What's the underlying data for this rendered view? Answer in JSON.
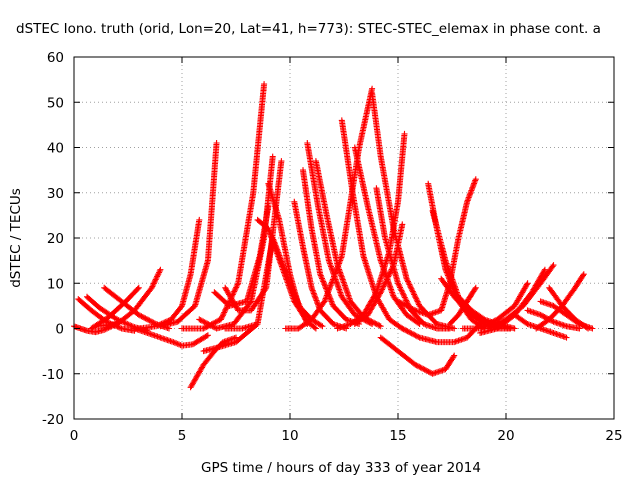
{
  "chart_data": {
    "type": "scatter",
    "title": "dSTEC Iono. truth (orid, Lon=20, Lat=41, h=773): STEC-STEC_elemax in phase cont. a",
    "xlabel": "GPS time / hours of day 333 of year 2014",
    "ylabel": "dSTEC  / TECUs",
    "xlim": [
      0,
      25
    ],
    "ylim": [
      -20,
      60
    ],
    "x_ticks": [
      "0",
      "5",
      "10",
      "15",
      "20",
      "25"
    ],
    "y_ticks": [
      "-20",
      "-10",
      "0",
      "10",
      "20",
      "30",
      "40",
      "50",
      "60"
    ],
    "grid": true,
    "marker": "+",
    "color": "#ff0000",
    "series": [
      {
        "x": [
          0.0,
          0.3,
          0.6,
          1.0,
          1.4,
          1.8,
          2.0
        ],
        "y": [
          0.5,
          0,
          -0.5,
          -0.8,
          -0.3,
          0.6,
          1.2
        ]
      },
      {
        "x": [
          0.2,
          0.8,
          1.5,
          2.2,
          2.8
        ],
        "y": [
          6.5,
          4,
          1.5,
          0,
          -0.5
        ]
      },
      {
        "x": [
          0.6,
          1.2,
          2.0,
          2.8,
          3.4
        ],
        "y": [
          7,
          4.5,
          2,
          0.3,
          -0.5
        ]
      },
      {
        "x": [
          0.8,
          1.6,
          2.4,
          3.0
        ],
        "y": [
          0,
          2.5,
          6,
          9
        ]
      },
      {
        "x": [
          1.4,
          2.2,
          3.0,
          3.8,
          4.4
        ],
        "y": [
          9,
          6,
          3,
          1,
          0
        ]
      },
      {
        "x": [
          1.0,
          2.0,
          2.8,
          3.6,
          4.0
        ],
        "y": [
          0.5,
          1,
          4,
          9,
          13
        ]
      },
      {
        "x": [
          2.8,
          3.4,
          4.0,
          4.6,
          5.0,
          5.5,
          6.2
        ],
        "y": [
          0,
          -1,
          -2,
          -3,
          -3.8,
          -3.5,
          -1.5
        ]
      },
      {
        "x": [
          3.0,
          3.8,
          4.5,
          5.0,
          5.4,
          5.8
        ],
        "y": [
          0,
          0.5,
          2,
          5,
          12,
          24
        ]
      },
      {
        "x": [
          4.0,
          4.8,
          5.6,
          6.2,
          6.6
        ],
        "y": [
          0.5,
          1.5,
          5,
          15,
          41
        ]
      },
      {
        "x": [
          5.4,
          6.0,
          6.5,
          6.9,
          7.5
        ],
        "y": [
          -13,
          -8,
          -5,
          -3,
          -2
        ]
      },
      {
        "x": [
          6.0,
          6.8,
          7.5,
          8.0,
          8.5
        ],
        "y": [
          -5,
          -4,
          -3,
          -1,
          1
        ]
      },
      {
        "x": [
          5.0,
          6.0,
          6.8,
          7.6,
          8.3,
          8.8
        ],
        "y": [
          0,
          0,
          2,
          10,
          30,
          54
        ]
      },
      {
        "x": [
          5.8,
          6.6,
          7.4,
          8.2,
          8.8,
          9.2
        ],
        "y": [
          2,
          0,
          1,
          6,
          20,
          38
        ]
      },
      {
        "x": [
          6.5,
          7.2,
          8.0,
          8.6,
          9.0
        ],
        "y": [
          8,
          5,
          6,
          16,
          27
        ]
      },
      {
        "x": [
          7.0,
          7.6,
          8.2,
          8.9,
          9.6
        ],
        "y": [
          9,
          4,
          4,
          9,
          37
        ]
      },
      {
        "x": [
          7.0,
          7.8,
          8.5,
          9.2,
          10.0,
          10.8
        ],
        "y": [
          0,
          0,
          1,
          20,
          10,
          1
        ]
      },
      {
        "x": [
          8.5,
          9.0,
          9.6,
          10.2,
          10.8,
          11.2
        ],
        "y": [
          24,
          22,
          14,
          6,
          1.5,
          0
        ]
      },
      {
        "x": [
          9.0,
          9.5,
          10.0,
          10.4,
          11.0,
          11.5
        ],
        "y": [
          32,
          24,
          12,
          5,
          2,
          0.5
        ]
      },
      {
        "x": [
          10.2,
          10.6,
          11.0,
          11.4,
          12.0,
          12.6
        ],
        "y": [
          28,
          18,
          9,
          4,
          1,
          0
        ]
      },
      {
        "x": [
          10.6,
          11.0,
          11.4,
          12.0,
          12.6,
          13.2
        ],
        "y": [
          35,
          22,
          12,
          5,
          2,
          1
        ]
      },
      {
        "x": [
          10.8,
          11.3,
          11.8,
          12.4,
          13.0,
          13.8
        ],
        "y": [
          41,
          27,
          15,
          7,
          3,
          1
        ]
      },
      {
        "x": [
          11.2,
          11.7,
          12.2,
          12.8,
          13.4,
          14.2
        ],
        "y": [
          37,
          25,
          14,
          6,
          2.5,
          0.5
        ]
      },
      {
        "x": [
          9.8,
          10.4,
          11.0,
          11.6,
          12.4,
          13.2,
          13.8
        ],
        "y": [
          0,
          0,
          2,
          6,
          16,
          40,
          53
        ]
      },
      {
        "x": [
          12.4,
          12.9,
          13.4,
          14.0,
          14.6,
          15.2
        ],
        "y": [
          46,
          30,
          16,
          7,
          2,
          0
        ]
      },
      {
        "x": [
          13.0,
          13.6,
          14.2,
          14.8,
          15.4,
          16.0
        ],
        "y": [
          40,
          27,
          15,
          7,
          3,
          1
        ]
      },
      {
        "x": [
          13.8,
          14.2,
          14.8,
          15.4,
          16.0,
          16.8,
          17.6
        ],
        "y": [
          52,
          38,
          22,
          11,
          5,
          1,
          0
        ]
      },
      {
        "x": [
          12.2,
          12.8,
          13.4,
          14.0,
          14.6,
          15.0,
          15.3
        ],
        "y": [
          0,
          1,
          3,
          8,
          17,
          28,
          43
        ]
      },
      {
        "x": [
          13.0,
          13.6,
          14.2,
          14.8,
          15.2
        ],
        "y": [
          1,
          3,
          8,
          14,
          23
        ]
      },
      {
        "x": [
          14.0,
          14.4,
          15.0,
          15.6,
          16.2,
          16.8,
          17.4
        ],
        "y": [
          31,
          20,
          10,
          4,
          1,
          0,
          0
        ]
      },
      {
        "x": [
          14.2,
          15.0,
          15.8,
          16.6,
          17.2,
          17.6
        ],
        "y": [
          -2,
          -5,
          -8,
          -10,
          -9,
          -6
        ]
      },
      {
        "x": [
          15.2,
          16.0,
          16.8,
          17.6,
          18.2,
          18.8
        ],
        "y": [
          0,
          -2,
          -3,
          -3,
          -2,
          1
        ]
      },
      {
        "x": [
          15.0,
          15.8,
          16.4,
          17.0,
          17.4,
          17.8,
          18.2,
          18.6
        ],
        "y": [
          6,
          4,
          3,
          4,
          10,
          20,
          28,
          33
        ]
      },
      {
        "x": [
          16.4,
          16.8,
          17.2,
          17.8,
          18.4,
          19.0
        ],
        "y": [
          32,
          22,
          13,
          6,
          2,
          0
        ]
      },
      {
        "x": [
          16.6,
          17.2,
          17.8,
          18.4,
          19.0,
          19.6,
          20.2
        ],
        "y": [
          26,
          15,
          7,
          3,
          1,
          0,
          0
        ]
      },
      {
        "x": [
          17.0,
          17.6,
          18.2,
          18.8,
          19.4,
          20.2
        ],
        "y": [
          11,
          7,
          4,
          2,
          1,
          0
        ]
      },
      {
        "x": [
          17.4,
          17.8,
          18.2,
          18.6
        ],
        "y": [
          1,
          3,
          6,
          9
        ]
      },
      {
        "x": [
          17.8,
          18.4,
          19.0,
          19.6,
          20.4
        ],
        "y": [
          7,
          4,
          2,
          1,
          0
        ]
      },
      {
        "x": [
          18.0,
          18.8,
          19.6,
          20.4,
          21.0
        ],
        "y": [
          0,
          0,
          2,
          5,
          10
        ]
      },
      {
        "x": [
          18.8,
          19.6,
          20.4,
          21.2,
          21.8
        ],
        "y": [
          -1,
          0,
          3,
          8,
          13
        ]
      },
      {
        "x": [
          19.2,
          20.0,
          20.8,
          21.6,
          22.2
        ],
        "y": [
          0,
          2,
          5,
          10,
          14
        ]
      },
      {
        "x": [
          20.4,
          21.0,
          21.6,
          22.2,
          22.8
        ],
        "y": [
          3,
          1,
          0,
          -1,
          -2
        ]
      },
      {
        "x": [
          21.0,
          21.6,
          22.2,
          22.8,
          23.4
        ],
        "y": [
          4,
          3,
          1.5,
          0.5,
          0
        ]
      },
      {
        "x": [
          21.6,
          22.2,
          22.8,
          23.4,
          24.0
        ],
        "y": [
          6,
          5,
          3,
          1,
          0
        ]
      },
      {
        "x": [
          21.4,
          22.0,
          22.6,
          23.2,
          23.6
        ],
        "y": [
          0,
          2,
          5,
          9,
          12
        ]
      },
      {
        "x": [
          22.0,
          22.6,
          23.2,
          23.8
        ],
        "y": [
          9,
          5,
          2,
          0
        ]
      }
    ]
  }
}
